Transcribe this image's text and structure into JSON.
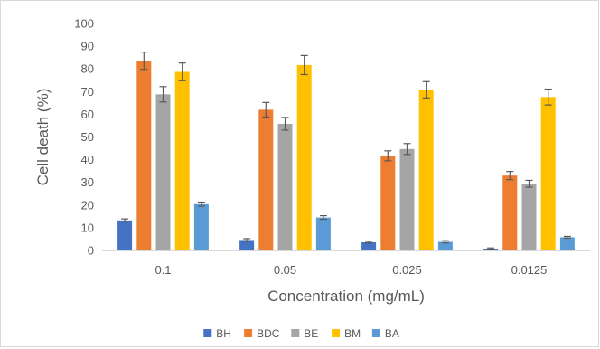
{
  "chart_data": {
    "type": "bar",
    "categories": [
      "0.1",
      "0.05",
      "0.025",
      "0.0125"
    ],
    "series": [
      {
        "name": "BH",
        "color": "#4472c4",
        "values": [
          13.2,
          4.6,
          3.6,
          0.8
        ],
        "errors": [
          0.7,
          0.6,
          0.4,
          0.3
        ]
      },
      {
        "name": "BDC",
        "color": "#ed7d31",
        "values": [
          83.6,
          62.0,
          41.7,
          33.0
        ],
        "errors": [
          3.8,
          3.2,
          2.2,
          1.8
        ]
      },
      {
        "name": "BE",
        "color": "#a5a5a5",
        "values": [
          68.8,
          55.8,
          44.7,
          29.4
        ],
        "errors": [
          3.4,
          2.8,
          2.4,
          1.5
        ]
      },
      {
        "name": "BM",
        "color": "#ffc000",
        "values": [
          78.7,
          81.7,
          70.8,
          67.6
        ],
        "errors": [
          3.9,
          4.2,
          3.6,
          3.5
        ]
      },
      {
        "name": "BA",
        "color": "#5b9bd5",
        "values": [
          20.4,
          14.5,
          3.8,
          5.8
        ],
        "errors": [
          0.9,
          0.8,
          0.5,
          0.4
        ]
      }
    ],
    "title": "",
    "xlabel": "Concentration (mg/mL)",
    "ylabel": "Cell death (%)",
    "ylim": [
      0,
      100
    ],
    "yticks": [
      0,
      10,
      20,
      30,
      40,
      50,
      60,
      70,
      80,
      90,
      100
    ],
    "grid": false,
    "legend_position": "bottom"
  }
}
